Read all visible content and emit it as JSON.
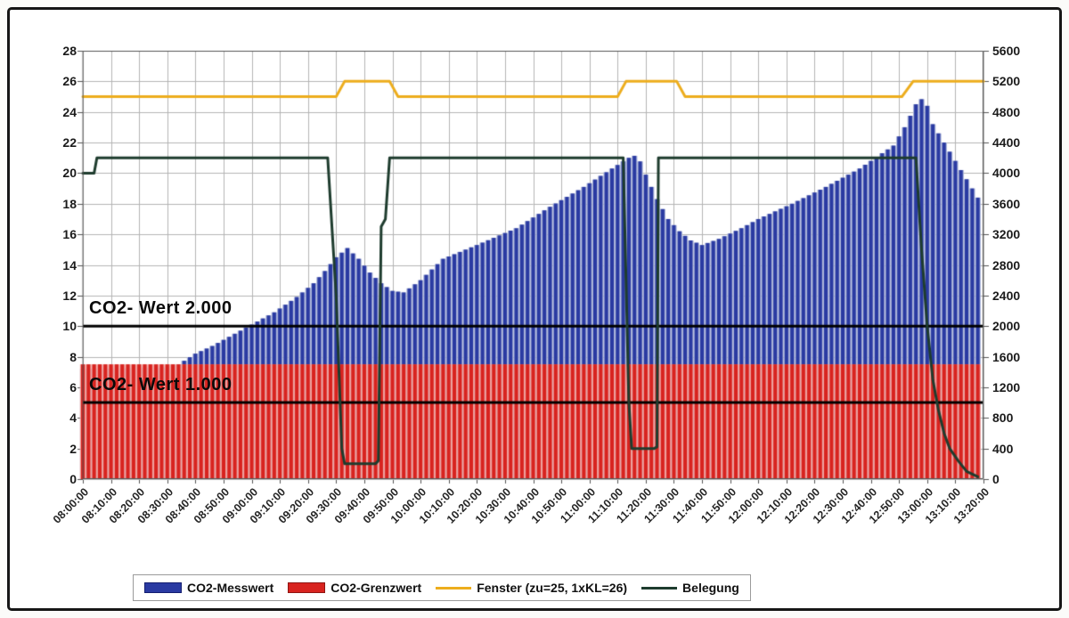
{
  "figure": {
    "background": "#ffffff",
    "border_color": "#161616"
  },
  "chart_data": {
    "type": "bar",
    "title": "",
    "xlabel": "",
    "ylabel_left": "",
    "ylabel_right": "",
    "x_axis": {
      "total_minutes": 320,
      "tick_interval_min": 10,
      "labels": [
        "08:00:00",
        "08:10:00",
        "08:20:00",
        "08:30:00",
        "08:40:00",
        "08:50:00",
        "09:00:00",
        "09:10:00",
        "09:20:00",
        "09:30:00",
        "09:40:00",
        "09:50:00",
        "10:00:00",
        "10:10:00",
        "10:20:00",
        "10:30:00",
        "10:40:00",
        "10:50:00",
        "11:00:00",
        "11:10:00",
        "11:20:00",
        "11:30:00",
        "11:40:00",
        "11:50:00",
        "12:00:00",
        "12:10:00",
        "12:20:00",
        "12:30:00",
        "12:40:00",
        "12:50:00",
        "13:00:00",
        "13:10:00",
        "13:20:00"
      ]
    },
    "left_axis": {
      "min": 0,
      "max": 28,
      "step": 2,
      "ticks": [
        0,
        2,
        4,
        6,
        8,
        10,
        12,
        14,
        16,
        18,
        20,
        22,
        24,
        26,
        28
      ]
    },
    "right_axis": {
      "min": 0,
      "max": 5600,
      "step": 400,
      "ppm_per_left_unit": 200,
      "ticks": [
        0,
        400,
        800,
        1200,
        1600,
        2000,
        2400,
        2800,
        3200,
        3600,
        4000,
        4400,
        4800,
        5200,
        5600
      ]
    },
    "grid": {
      "on": true,
      "color": "#b5b5b5"
    },
    "series": [
      {
        "name": "CO2-Messwert",
        "type": "bar",
        "axis": "right",
        "unit": "ppm",
        "bar_interval_min": 2,
        "color": "#2a3aa2",
        "color_light": "#a8b2d8",
        "envelope_min_ppm": [
          [
            0,
            1440
          ],
          [
            30,
            1460
          ],
          [
            34,
            1500
          ],
          [
            40,
            1640
          ],
          [
            46,
            1740
          ],
          [
            52,
            1860
          ],
          [
            60,
            2020
          ],
          [
            68,
            2180
          ],
          [
            76,
            2380
          ],
          [
            82,
            2560
          ],
          [
            86,
            2720
          ],
          [
            90,
            2900
          ],
          [
            94,
            3020
          ],
          [
            98,
            2880
          ],
          [
            102,
            2700
          ],
          [
            106,
            2560
          ],
          [
            110,
            2460
          ],
          [
            114,
            2440
          ],
          [
            120,
            2600
          ],
          [
            128,
            2880
          ],
          [
            140,
            3060
          ],
          [
            154,
            3280
          ],
          [
            166,
            3560
          ],
          [
            178,
            3820
          ],
          [
            188,
            4060
          ],
          [
            194,
            4200
          ],
          [
            197,
            4240
          ],
          [
            200,
            3980
          ],
          [
            204,
            3660
          ],
          [
            208,
            3400
          ],
          [
            212,
            3240
          ],
          [
            216,
            3120
          ],
          [
            220,
            3060
          ],
          [
            226,
            3140
          ],
          [
            234,
            3280
          ],
          [
            240,
            3400
          ],
          [
            252,
            3600
          ],
          [
            264,
            3820
          ],
          [
            276,
            4060
          ],
          [
            288,
            4360
          ],
          [
            292,
            4600
          ],
          [
            296,
            4900
          ],
          [
            299,
            5000
          ],
          [
            302,
            4640
          ],
          [
            308,
            4280
          ],
          [
            314,
            3920
          ],
          [
            318,
            3680
          ]
        ]
      },
      {
        "name": "CO2-Grenzwert",
        "type": "bar",
        "axis": "right",
        "unit": "ppm",
        "bar_interval_min": 2,
        "constant_value_ppm": 1500,
        "color": "#d8231f",
        "color_light": "#f0a09c",
        "range_min": [
          0,
          318
        ]
      },
      {
        "name": "Fenster (zu=25, 1xKL=26)",
        "type": "line",
        "axis": "left",
        "color": "#edad1d",
        "width": 3,
        "points": [
          [
            0,
            25
          ],
          [
            90,
            25
          ],
          [
            93,
            26
          ],
          [
            109,
            26
          ],
          [
            112,
            25
          ],
          [
            190,
            25
          ],
          [
            193,
            26
          ],
          [
            211,
            26
          ],
          [
            214,
            25
          ],
          [
            291,
            25
          ],
          [
            295,
            26
          ],
          [
            320,
            26
          ]
        ]
      },
      {
        "name": "Belegung",
        "type": "line",
        "axis": "left",
        "color": "#1e3c2e",
        "width": 3,
        "points": [
          [
            0,
            20
          ],
          [
            4,
            20
          ],
          [
            5,
            21
          ],
          [
            87,
            21
          ],
          [
            90,
            12
          ],
          [
            92,
            2
          ],
          [
            93,
            1
          ],
          [
            104,
            1
          ],
          [
            105,
            1.2
          ],
          [
            106,
            16.5
          ],
          [
            107.5,
            17
          ],
          [
            109,
            21
          ],
          [
            110,
            21
          ],
          [
            192,
            21
          ],
          [
            194,
            5
          ],
          [
            195,
            2
          ],
          [
            203,
            2
          ],
          [
            204,
            2.1
          ],
          [
            204.5,
            21
          ],
          [
            296,
            21
          ],
          [
            298,
            15
          ],
          [
            300,
            10
          ],
          [
            302,
            6.5
          ],
          [
            304,
            4.5
          ],
          [
            306,
            3
          ],
          [
            308,
            2
          ],
          [
            311,
            1.2
          ],
          [
            314,
            0.5
          ],
          [
            318,
            0.15
          ]
        ]
      }
    ],
    "reference_lines": [
      {
        "left_value": 10,
        "right_value_ppm": 2000,
        "label": "CO2- Wert 2.000",
        "color": "#000000"
      },
      {
        "left_value": 5,
        "right_value_ppm": 1000,
        "label": "CO2- Wert 1.000",
        "color": "#000000"
      }
    ]
  },
  "legend": {
    "items": [
      {
        "label": "CO2-Messwert",
        "swatch": "bar",
        "color": "#2a3aa2",
        "border": "#141e70"
      },
      {
        "label": "CO2-Grenzwert",
        "swatch": "bar",
        "color": "#d8231f",
        "border": "#8f1512"
      },
      {
        "label": "Fenster (zu=25, 1xKL=26)",
        "swatch": "line",
        "color": "#edad1d",
        "border": "#edad1d"
      },
      {
        "label": "Belegung",
        "swatch": "line",
        "color": "#1e3c2e",
        "border": "#1e3c2e"
      }
    ]
  }
}
